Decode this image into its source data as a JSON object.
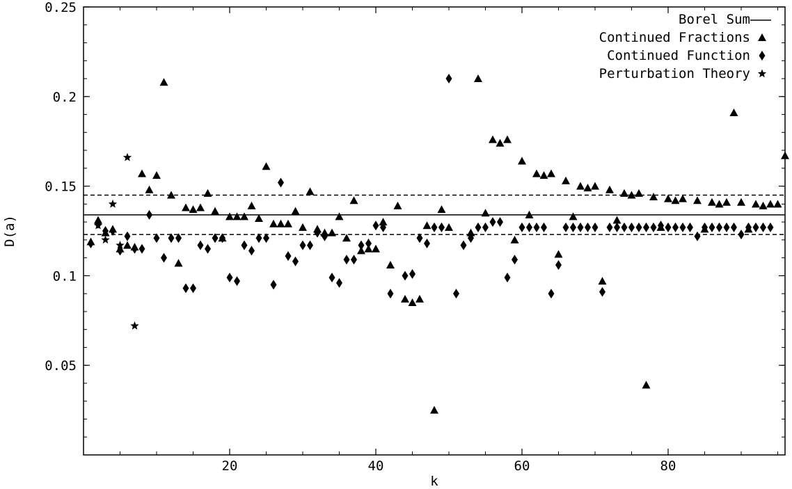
{
  "chart_data": {
    "type": "scatter",
    "title": "",
    "xlabel": "k",
    "ylabel": "D(a)",
    "xlim": [
      0,
      96
    ],
    "ylim": [
      0,
      0.25
    ],
    "x_ticks": [
      20,
      40,
      60,
      80
    ],
    "y_ticks": [
      0.05,
      0.1,
      0.15,
      0.2,
      0.25
    ],
    "y_tick_labels": [
      "0.05",
      "0.1",
      "0.15",
      "0.2",
      "0.25"
    ],
    "grid": false,
    "legend_position": "top-right",
    "reference_lines": [
      {
        "name": "Borel Sum",
        "y": 0.134,
        "style": "solid"
      },
      {
        "name": "",
        "y": 0.145,
        "style": "dashed"
      },
      {
        "name": "",
        "y": 0.123,
        "style": "dashed"
      }
    ],
    "series": [
      {
        "name": "Continued Fractions",
        "marker": "triangle",
        "points": [
          [
            1,
            0.119
          ],
          [
            2,
            0.131
          ],
          [
            3,
            0.124
          ],
          [
            4,
            0.126
          ],
          [
            5,
            0.115
          ],
          [
            6,
            0.117
          ],
          [
            7,
            0.116
          ],
          [
            8,
            0.157
          ],
          [
            9,
            0.148
          ],
          [
            10,
            0.156
          ],
          [
            11,
            0.208
          ],
          [
            12,
            0.145
          ],
          [
            13,
            0.107
          ],
          [
            14,
            0.138
          ],
          [
            15,
            0.137
          ],
          [
            16,
            0.138
          ],
          [
            17,
            0.146
          ],
          [
            18,
            0.136
          ],
          [
            19,
            0.121
          ],
          [
            20,
            0.133
          ],
          [
            21,
            0.133
          ],
          [
            22,
            0.133
          ],
          [
            23,
            0.139
          ],
          [
            24,
            0.132
          ],
          [
            25,
            0.161
          ],
          [
            26,
            0.129
          ],
          [
            27,
            0.129
          ],
          [
            28,
            0.129
          ],
          [
            29,
            0.136
          ],
          [
            30,
            0.127
          ],
          [
            31,
            0.147
          ],
          [
            32,
            0.126
          ],
          [
            33,
            0.124
          ],
          [
            34,
            0.124
          ],
          [
            35,
            0.133
          ],
          [
            36,
            0.121
          ],
          [
            37,
            0.142
          ],
          [
            38,
            0.114
          ],
          [
            39,
            0.115
          ],
          [
            40,
            0.115
          ],
          [
            41,
            0.13
          ],
          [
            42,
            0.106
          ],
          [
            43,
            0.139
          ],
          [
            44,
            0.087
          ],
          [
            45,
            0.085
          ],
          [
            46,
            0.087
          ],
          [
            47,
            0.128
          ],
          [
            48,
            0.025
          ],
          [
            49,
            0.137
          ],
          [
            50,
            0.127
          ],
          [
            53,
            0.124
          ],
          [
            54,
            0.21
          ],
          [
            55,
            0.135
          ],
          [
            56,
            0.176
          ],
          [
            57,
            0.174
          ],
          [
            58,
            0.176
          ],
          [
            59,
            0.12
          ],
          [
            60,
            0.164
          ],
          [
            61,
            0.134
          ],
          [
            62,
            0.157
          ],
          [
            63,
            0.156
          ],
          [
            64,
            0.157
          ],
          [
            65,
            0.112
          ],
          [
            66,
            0.153
          ],
          [
            67,
            0.133
          ],
          [
            68,
            0.15
          ],
          [
            69,
            0.149
          ],
          [
            70,
            0.15
          ],
          [
            71,
            0.097
          ],
          [
            72,
            0.148
          ],
          [
            73,
            0.131
          ],
          [
            74,
            0.146
          ],
          [
            75,
            0.145
          ],
          [
            76,
            0.146
          ],
          [
            77,
            0.039
          ],
          [
            78,
            0.144
          ],
          [
            79,
            0.127
          ],
          [
            80,
            0.143
          ],
          [
            81,
            0.142
          ],
          [
            82,
            0.143
          ],
          [
            84,
            0.142
          ],
          [
            85,
            0.126
          ],
          [
            86,
            0.141
          ],
          [
            87,
            0.14
          ],
          [
            88,
            0.141
          ],
          [
            89,
            0.191
          ],
          [
            90,
            0.141
          ],
          [
            91,
            0.126
          ],
          [
            92,
            0.14
          ],
          [
            93,
            0.139
          ],
          [
            94,
            0.14
          ],
          [
            95,
            0.14
          ],
          [
            96,
            0.167
          ]
        ]
      },
      {
        "name": "Continued Function",
        "marker": "diamond",
        "points": [
          [
            1,
            0.118
          ],
          [
            2,
            0.129
          ],
          [
            3,
            0.125
          ],
          [
            4,
            0.125
          ],
          [
            5,
            0.114
          ],
          [
            6,
            0.122
          ],
          [
            7,
            0.115
          ],
          [
            8,
            0.115
          ],
          [
            9,
            0.134
          ],
          [
            10,
            0.121
          ],
          [
            11,
            0.11
          ],
          [
            12,
            0.121
          ],
          [
            13,
            0.121
          ],
          [
            14,
            0.093
          ],
          [
            15,
            0.093
          ],
          [
            16,
            0.117
          ],
          [
            17,
            0.115
          ],
          [
            18,
            0.121
          ],
          [
            19,
            0.121
          ],
          [
            20,
            0.099
          ],
          [
            21,
            0.097
          ],
          [
            22,
            0.117
          ],
          [
            23,
            0.114
          ],
          [
            24,
            0.121
          ],
          [
            25,
            0.121
          ],
          [
            26,
            0.095
          ],
          [
            27,
            0.152
          ],
          [
            28,
            0.111
          ],
          [
            29,
            0.108
          ],
          [
            30,
            0.117
          ],
          [
            31,
            0.117
          ],
          [
            32,
            0.124
          ],
          [
            33,
            0.122
          ],
          [
            34,
            0.099
          ],
          [
            35,
            0.096
          ],
          [
            36,
            0.109
          ],
          [
            37,
            0.109
          ],
          [
            38,
            0.117
          ],
          [
            39,
            0.118
          ],
          [
            40,
            0.128
          ],
          [
            41,
            0.127
          ],
          [
            42,
            0.09
          ],
          [
            44,
            0.1
          ],
          [
            45,
            0.101
          ],
          [
            46,
            0.121
          ],
          [
            47,
            0.118
          ],
          [
            48,
            0.127
          ],
          [
            49,
            0.127
          ],
          [
            50,
            0.21
          ],
          [
            51,
            0.09
          ],
          [
            52,
            0.117
          ],
          [
            53,
            0.121
          ],
          [
            54,
            0.127
          ],
          [
            55,
            0.127
          ],
          [
            56,
            0.13
          ],
          [
            57,
            0.13
          ],
          [
            58,
            0.099
          ],
          [
            59,
            0.109
          ],
          [
            60,
            0.127
          ],
          [
            61,
            0.127
          ],
          [
            62,
            0.127
          ],
          [
            63,
            0.127
          ],
          [
            64,
            0.09
          ],
          [
            65,
            0.106
          ],
          [
            66,
            0.127
          ],
          [
            67,
            0.127
          ],
          [
            68,
            0.127
          ],
          [
            69,
            0.127
          ],
          [
            70,
            0.127
          ],
          [
            71,
            0.091
          ],
          [
            72,
            0.127
          ],
          [
            73,
            0.127
          ],
          [
            74,
            0.127
          ],
          [
            75,
            0.127
          ],
          [
            76,
            0.127
          ],
          [
            77,
            0.127
          ],
          [
            78,
            0.127
          ],
          [
            79,
            0.128
          ],
          [
            80,
            0.127
          ],
          [
            81,
            0.127
          ],
          [
            82,
            0.127
          ],
          [
            83,
            0.127
          ],
          [
            84,
            0.122
          ],
          [
            85,
            0.127
          ],
          [
            86,
            0.127
          ],
          [
            87,
            0.127
          ],
          [
            88,
            0.127
          ],
          [
            89,
            0.127
          ],
          [
            90,
            0.123
          ],
          [
            91,
            0.127
          ],
          [
            92,
            0.127
          ],
          [
            93,
            0.127
          ],
          [
            94,
            0.127
          ]
        ]
      },
      {
        "name": "Perturbation Theory",
        "marker": "star",
        "points": [
          [
            2,
            0.128
          ],
          [
            3,
            0.12
          ],
          [
            4,
            0.14
          ],
          [
            5,
            0.117
          ],
          [
            6,
            0.166
          ],
          [
            7,
            0.072
          ]
        ]
      }
    ]
  }
}
